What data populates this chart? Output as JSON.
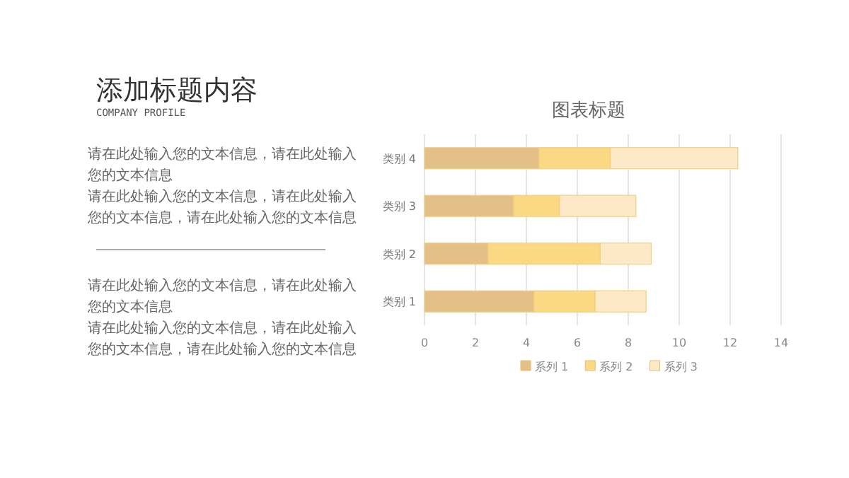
{
  "chart_data": {
    "type": "bar",
    "orientation": "horizontal",
    "stacked": true,
    "title": "图表标题",
    "categories": [
      "类别 4",
      "类别 3",
      "类别 2",
      "类别 1"
    ],
    "series": [
      {
        "name": "系列 1",
        "color": "#e3c088",
        "values": [
          4.5,
          3.5,
          2.5,
          4.3
        ]
      },
      {
        "name": "系列 2",
        "color": "#fbd883",
        "values": [
          2.8,
          1.8,
          4.4,
          2.4
        ]
      },
      {
        "name": "系列 3",
        "color": "#fde9c8",
        "values": [
          5,
          3,
          2,
          2
        ]
      }
    ],
    "xlim": [
      0,
      14
    ],
    "xticks": [
      0,
      2,
      4,
      6,
      8,
      10,
      12,
      14
    ],
    "grid": "x",
    "legend": "bottom",
    "annotations": [
      "添加标题内容",
      "COMPANY PROFILE",
      "请在此处输入您的文本信息，请在此处输入您的文本信息",
      "请在此处输入您的文本信息，请在此处输入您的文本信息，请在此处输入您的文本信息",
      "请在此处输入您的文本信息，请在此处输入您的文本信息",
      "请在此处输入您的文本信息，请在此处输入您的文本信息，请在此处输入您的文本信息"
    ]
  }
}
